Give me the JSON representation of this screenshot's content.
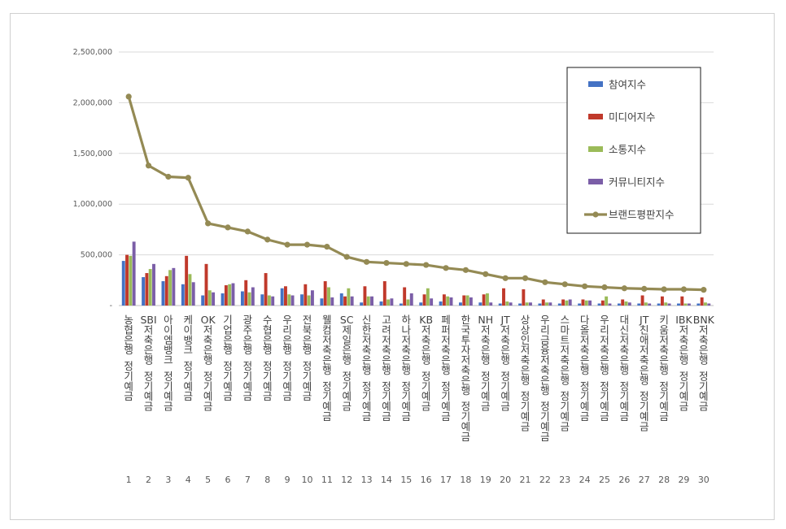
{
  "chart_data": {
    "type": "bar",
    "title": "",
    "xlabel": "",
    "ylabel": "",
    "ylim": [
      0,
      2500000
    ],
    "yticks": [
      "-",
      "500,000",
      "1,000,000",
      "1,500,000",
      "2,000,000",
      "2,500,000"
    ],
    "grid": true,
    "legend_position": "top-right",
    "ranks": [
      "1",
      "2",
      "3",
      "4",
      "5",
      "6",
      "7",
      "8",
      "9",
      "10",
      "11",
      "12",
      "13",
      "14",
      "15",
      "16",
      "17",
      "18",
      "19",
      "20",
      "21",
      "22",
      "23",
      "24",
      "25",
      "26",
      "27",
      "28",
      "29",
      "30"
    ],
    "categories": [
      "농협은행 정기예금",
      "SBI저축은행 정기예금",
      "아이엠뱅크 정기예금",
      "케이뱅크 정기예금",
      "OK저축은행 정기예금",
      "기업은행 정기예금",
      "광주은행 정기예금",
      "수협은행 정기예금",
      "우리은행 정기예금",
      "전북은행 정기예금",
      "웰컴저축은행 정기예금",
      "SC제일은행 정기예금",
      "신한저축은행 정기예금",
      "고려저축은행 정기예금",
      "하나저축은행 정기예금",
      "KB저축은행 정기예금",
      "페퍼저축은행 정기예금",
      "한국투자저축은행 정기예금",
      "NH저축은행 정기예금",
      "JT저축은행 정기예금",
      "상상인저축은행 정기예금",
      "우리금융저축은행 정기예금",
      "스마트저축은행 정기예금",
      "다올저축은행 정기예금",
      "우리저축은행 정기예금",
      "대신저축은행 정기예금",
      "JT친애저축은행 정기예금",
      "키움저축은행 정기예금",
      "IBK저축은행 정기예금",
      "BNK저축은행 정기예금"
    ],
    "series": [
      {
        "name": "참여지수",
        "color": "#4472C4",
        "kind": "bar",
        "values": [
          440000,
          280000,
          240000,
          210000,
          100000,
          120000,
          140000,
          110000,
          170000,
          110000,
          70000,
          120000,
          30000,
          40000,
          20000,
          30000,
          40000,
          30000,
          30000,
          20000,
          20000,
          20000,
          20000,
          20000,
          20000,
          20000,
          20000,
          20000,
          20000,
          20000
        ]
      },
      {
        "name": "미디어지수",
        "color": "#C0392B",
        "kind": "bar",
        "values": [
          500000,
          320000,
          290000,
          490000,
          410000,
          200000,
          250000,
          320000,
          190000,
          210000,
          240000,
          90000,
          190000,
          240000,
          180000,
          110000,
          110000,
          100000,
          110000,
          170000,
          160000,
          60000,
          60000,
          60000,
          50000,
          60000,
          100000,
          90000,
          90000,
          80000
        ]
      },
      {
        "name": "소통지수",
        "color": "#9BBB59",
        "kind": "bar",
        "values": [
          490000,
          360000,
          350000,
          310000,
          150000,
          210000,
          130000,
          100000,
          110000,
          100000,
          180000,
          170000,
          90000,
          60000,
          60000,
          170000,
          90000,
          100000,
          120000,
          40000,
          30000,
          30000,
          50000,
          50000,
          90000,
          40000,
          30000,
          30000,
          20000,
          30000
        ]
      },
      {
        "name": "커뮤니티지수",
        "color": "#7B5EA7",
        "kind": "bar",
        "values": [
          630000,
          410000,
          370000,
          230000,
          130000,
          220000,
          180000,
          90000,
          100000,
          150000,
          80000,
          90000,
          90000,
          70000,
          120000,
          70000,
          80000,
          80000,
          30000,
          30000,
          30000,
          30000,
          60000,
          50000,
          20000,
          30000,
          20000,
          20000,
          20000,
          20000
        ]
      },
      {
        "name": "브랜드평판지수",
        "color": "#948A54",
        "kind": "line",
        "values": [
          2060000,
          1380000,
          1270000,
          1260000,
          810000,
          770000,
          730000,
          650000,
          600000,
          600000,
          580000,
          480000,
          430000,
          420000,
          410000,
          400000,
          370000,
          350000,
          310000,
          270000,
          270000,
          230000,
          210000,
          190000,
          180000,
          170000,
          165000,
          160000,
          160000,
          155000
        ]
      }
    ]
  }
}
